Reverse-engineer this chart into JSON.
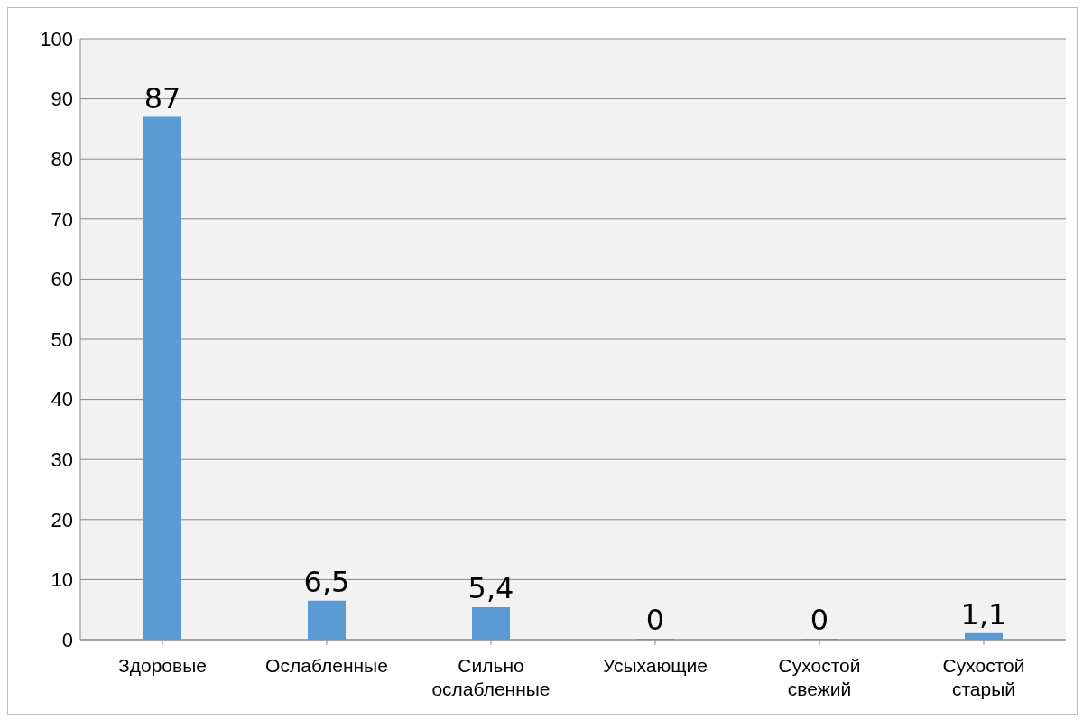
{
  "chart_data": {
    "type": "bar",
    "categories": [
      "Здоровые",
      "Ослабленные",
      "Сильно ослабленные",
      "Усыхающие",
      "Сухостой свежий",
      "Сухостой старый"
    ],
    "values": [
      87,
      6.5,
      5.4,
      0,
      0,
      1.1
    ],
    "value_labels": [
      "87",
      "6,5",
      "5,4",
      "0",
      "0",
      "1,1"
    ],
    "color": "#5b9bd5",
    "ylim": [
      0,
      100
    ],
    "yticks": [
      0,
      10,
      20,
      30,
      40,
      50,
      60,
      70,
      80,
      90,
      100
    ],
    "grid": "y",
    "legend": false
  }
}
